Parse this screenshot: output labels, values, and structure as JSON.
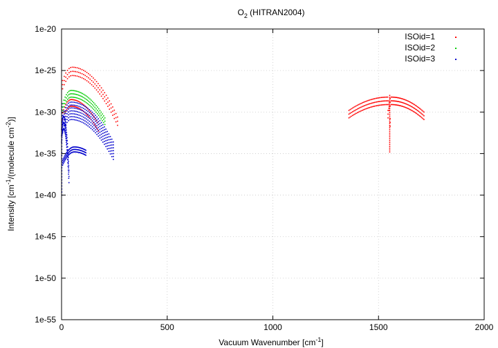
{
  "chart_data": {
    "type": "scatter",
    "title": "O2 (HITRAN2004)",
    "title_main": "O",
    "title_sub": "2",
    "title_rest": " (HITRAN2004)",
    "xlabel": "Vacuum Wavenumber [cm-1]",
    "xlabel_main": "Vacuum Wavenumber [cm",
    "xlabel_sup": "-1",
    "xlabel_end": "]",
    "ylabel": "Intensity [cm-1/(molecule cm-2)]",
    "ylabel_a": "Intensity [cm",
    "ylabel_sup1": "-1",
    "ylabel_b": "/(molecule cm",
    "ylabel_sup2": "-2",
    "ylabel_c": ")]",
    "xlim": [
      0,
      2000
    ],
    "ylim_log10": [
      -55,
      -20
    ],
    "y_scale": "log",
    "grid": true,
    "legend_position": "top-right",
    "xticks": [
      0,
      500,
      1000,
      1500,
      2000
    ],
    "xtick_labels": [
      "0",
      "500",
      "1000",
      "1500",
      "2000"
    ],
    "yticks_log10": [
      -20,
      -25,
      -30,
      -35,
      -40,
      -45,
      -50,
      -55
    ],
    "ytick_labels": [
      "1e-20",
      "1e-25",
      "1e-30",
      "1e-35",
      "1e-40",
      "1e-45",
      "1e-50",
      "1e-55"
    ],
    "series": [
      {
        "name": "ISOid=1",
        "color": "#ff0000",
        "bands": [
          {
            "x0": 5,
            "x1": 265,
            "peak_x": 50,
            "peak_log10": -24.6,
            "end_log10": -30.6,
            "curves": 3,
            "spread": 1.0
          },
          {
            "x0": 5,
            "x1": 175,
            "peak_x": 45,
            "peak_log10": -28.5,
            "end_log10": -31.5,
            "curves": 2,
            "spread": 0.8
          },
          {
            "x0": 1360,
            "x1": 1555,
            "peak_x": 1545,
            "peak_log10": -28.2,
            "end_log10": -30.8,
            "curves": 3,
            "spread": 0.9
          },
          {
            "x0": 1545,
            "x1": 1715,
            "peak_x": 1560,
            "peak_log10": -28.2,
            "end_log10": -30.0,
            "curves": 3,
            "spread": 0.9
          }
        ],
        "spikes": [
          {
            "x": 1553,
            "log10_min": -34.8,
            "log10_max": -28.0
          }
        ]
      },
      {
        "name": "ISOid=2",
        "color": "#00cc00",
        "bands": [
          {
            "x0": 5,
            "x1": 205,
            "peak_x": 45,
            "peak_log10": -27.4,
            "end_log10": -30.7,
            "curves": 3,
            "spread": 0.8
          }
        ],
        "spikes": []
      },
      {
        "name": "ISOid=3",
        "color": "#0000cc",
        "bands": [
          {
            "x0": 5,
            "x1": 245,
            "peak_x": 45,
            "peak_log10": -28.8,
            "end_log10": -33.6,
            "curves": 7,
            "spread": 2.1
          },
          {
            "x0": 5,
            "x1": 115,
            "peak_x": 60,
            "peak_log10": -34.2,
            "end_log10": -34.6,
            "curves": 3,
            "spread": 0.6
          },
          {
            "x0": 0,
            "x1": 35,
            "peak_x": 10,
            "peak_log10": -30.5,
            "end_log10": -37.0,
            "curves": 3,
            "spread": 1.5
          }
        ],
        "spikes": [
          {
            "x": 1,
            "log10_min": -40.0,
            "log10_max": -29.0
          }
        ]
      }
    ]
  }
}
